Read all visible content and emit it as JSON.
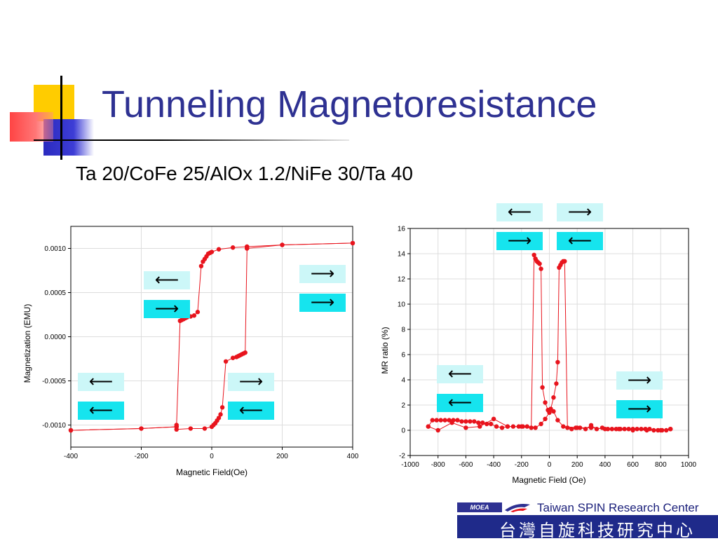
{
  "slide": {
    "title": "Tunneling Magnetoresistance",
    "subtitle": "Ta 20/CoFe 25/AlOx 1.2/NiFe 30/Ta 40"
  },
  "colors": {
    "title": "#2e3192",
    "series": "#e8141d",
    "arrow_light": "#ccf7f8",
    "arrow_dark": "#16e4ee",
    "deco_yellow": "#ffcc00",
    "deco_blue": "#3333cc",
    "deco_red": "#ff5555"
  },
  "arrows": {
    "left": "⟵",
    "right": "⟶"
  },
  "footer": {
    "moea": "MOEA",
    "en": "Taiwan SPIN Research Center",
    "zh": "台灣自旋科技研究中心"
  },
  "chart_data": [
    {
      "type": "line",
      "xlabel": "Magnetic Field(Oe)",
      "ylabel": "Magnetization (EMU)",
      "xlim": [
        -400,
        400
      ],
      "ylim": [
        -0.00125,
        0.00125
      ],
      "xticks": [
        -400,
        -200,
        0,
        200,
        400
      ],
      "yticks": [
        -0.001,
        -0.0005,
        0.0,
        0.0005,
        0.001
      ],
      "xtick_labels": [
        "-400",
        "-200",
        "0",
        "200",
        "400"
      ],
      "ytick_labels": [
        "-0.0010",
        "-0.0005",
        "0.0000",
        "0.0005",
        "0.0010"
      ],
      "grid": true,
      "series": [
        {
          "x": [
            400,
            200,
            100,
            100,
            95,
            90,
            85,
            80,
            75,
            70,
            60,
            40,
            30,
            25,
            20,
            15,
            10,
            5,
            0,
            -20,
            -60,
            -100,
            -100,
            -200,
            -400
          ],
          "y": [
            0.00106,
            0.00104,
            0.00102,
            0.001,
            -0.00018,
            -0.00019,
            -0.0002,
            -0.00021,
            -0.00022,
            -0.00023,
            -0.00024,
            -0.00028,
            -0.0008,
            -0.00088,
            -0.00092,
            -0.00095,
            -0.00098,
            -0.001,
            -0.00102,
            -0.00104,
            -0.00104,
            -0.00105,
            -0.00102,
            -0.00104,
            -0.00106
          ]
        },
        {
          "x": [
            -400,
            -200,
            -100,
            -100,
            -90,
            -85,
            -80,
            -75,
            -70,
            -60,
            -50,
            -40,
            -30,
            -25,
            -20,
            -15,
            -10,
            -5,
            0,
            20,
            60,
            100,
            100,
            200,
            400
          ],
          "y": [
            -0.00106,
            -0.00104,
            -0.00102,
            -0.001,
            0.00018,
            0.00019,
            0.0002,
            0.00021,
            0.00022,
            0.00023,
            0.00024,
            0.00028,
            0.0008,
            0.00085,
            0.00088,
            0.00091,
            0.00094,
            0.00095,
            0.00096,
            0.00099,
            0.00101,
            0.00102,
            0.001,
            0.00104,
            0.00106
          ]
        }
      ]
    },
    {
      "type": "scatter",
      "xlabel": "Magnetic Field (Oe)",
      "ylabel": "MR ratio (%)",
      "xlim": [
        -1000,
        1000
      ],
      "ylim": [
        -2,
        16
      ],
      "xticks": [
        -1000,
        -800,
        -600,
        -400,
        -200,
        0,
        200,
        400,
        600,
        800,
        1000
      ],
      "yticks": [
        -2,
        0,
        2,
        4,
        6,
        8,
        10,
        12,
        14,
        16
      ],
      "xtick_labels": [
        "-1000",
        "-800",
        "-600",
        "-400",
        "-200",
        "0",
        "200",
        "400",
        "600",
        "800",
        "1000"
      ],
      "ytick_labels": [
        "-2",
        "0",
        "2",
        "4",
        "6",
        "8",
        "10",
        "12",
        "14",
        "16"
      ],
      "grid": true,
      "series": [
        {
          "x": [
            -870,
            -840,
            -810,
            -780,
            -750,
            -720,
            -690,
            -660,
            -630,
            -600,
            -570,
            -540,
            -510,
            -480,
            -450,
            -420,
            -380,
            -340,
            -300,
            -260,
            -220,
            -190,
            -160,
            -130,
            -110,
            -100,
            -90,
            -80,
            -70,
            -60,
            -50,
            -30,
            -10,
            0,
            30,
            60,
            100,
            200,
            300,
            400,
            500,
            600,
            700,
            800,
            870
          ],
          "y": [
            0.3,
            0.8,
            0.8,
            0.8,
            0.8,
            0.8,
            0.8,
            0.8,
            0.7,
            0.7,
            0.7,
            0.7,
            0.6,
            0.6,
            0.5,
            0.5,
            0.3,
            0.2,
            0.3,
            0.3,
            0.3,
            0.3,
            0.3,
            0.2,
            13.9,
            13.6,
            13.4,
            13.3,
            13.2,
            12.8,
            3.4,
            2.2,
            1.6,
            1.6,
            1.5,
            0.8,
            0.3,
            0.2,
            0.2,
            0.1,
            0.1,
            0.1,
            0.0,
            0.0,
            0.1
          ]
        },
        {
          "x": [
            870,
            840,
            810,
            780,
            750,
            720,
            690,
            660,
            630,
            600,
            570,
            540,
            510,
            480,
            450,
            420,
            380,
            340,
            300,
            260,
            220,
            190,
            160,
            130,
            110,
            100,
            90,
            80,
            70,
            60,
            50,
            30,
            10,
            0,
            -30,
            -60,
            -100,
            -200,
            -300,
            -400,
            -500,
            -600,
            -700,
            -800,
            -870
          ],
          "y": [
            0.1,
            0.0,
            0.0,
            0.0,
            0.0,
            0.1,
            0.1,
            0.1,
            0.1,
            0.0,
            0.1,
            0.1,
            0.1,
            0.1,
            0.1,
            0.1,
            0.2,
            0.1,
            0.4,
            0.1,
            0.2,
            0.2,
            0.1,
            0.2,
            13.4,
            13.4,
            13.3,
            13.1,
            12.9,
            5.4,
            3.7,
            2.6,
            1.7,
            1.4,
            0.9,
            0.5,
            0.2,
            0.3,
            0.3,
            0.9,
            0.3,
            0.2,
            0.6,
            0.0,
            0.3
          ]
        }
      ]
    }
  ]
}
